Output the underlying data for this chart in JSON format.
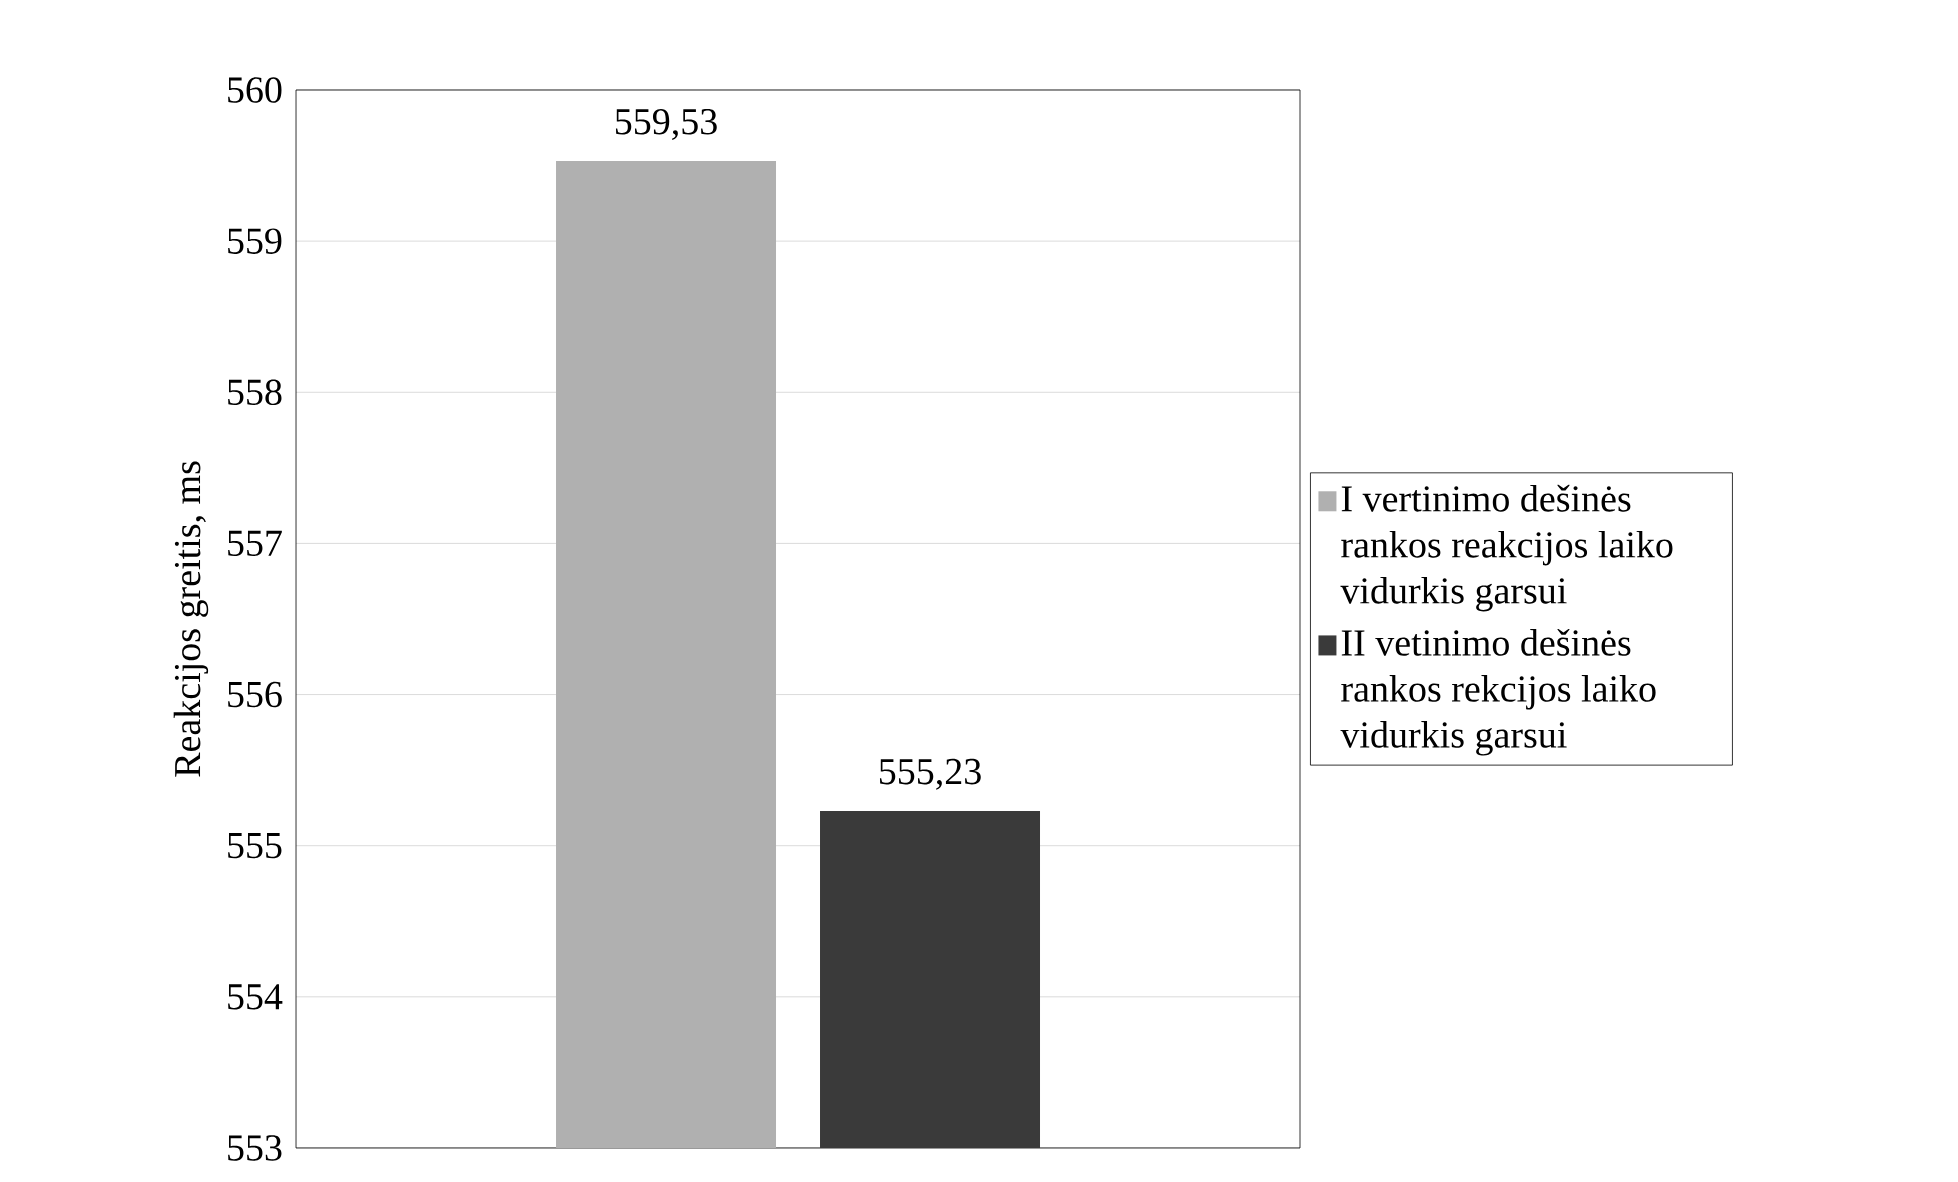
{
  "chart_data": {
    "type": "bar",
    "ylabel": "Reakcijos greitis, ms",
    "categories": [
      null
    ],
    "series": [
      {
        "name": "I vertinimo dešinės rankos reakcijos laiko vidurkis garsui",
        "color": "#b0b0b0",
        "values": [
          559.53
        ],
        "value_labels": [
          "559,53"
        ]
      },
      {
        "name": "II vetinimo dešinės rankos rekcijos laiko vidurkis garsui",
        "color": "#3a3a3a",
        "values": [
          555.23
        ],
        "value_labels": [
          "555,23"
        ]
      }
    ],
    "ylim": [
      553,
      560
    ],
    "yticks": [
      553,
      554,
      555,
      556,
      557,
      558,
      559,
      560
    ],
    "grid": "y",
    "legend": "right"
  }
}
